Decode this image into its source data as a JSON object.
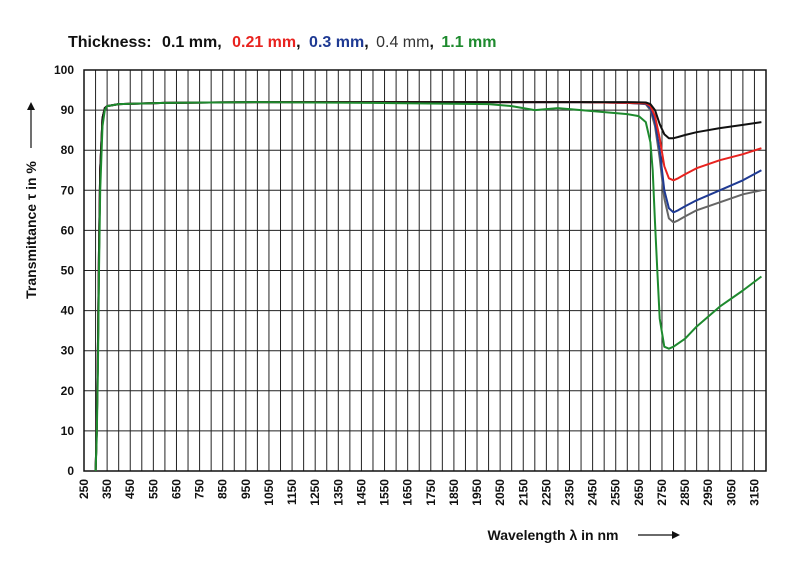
{
  "chart_data": {
    "type": "line",
    "legend": {
      "prefix": "Thickness:",
      "separator": ",",
      "entries": [
        {
          "label": "0.1 mm",
          "color": "#111111",
          "bold": true
        },
        {
          "label": "0.21 mm",
          "color": "#e8231f",
          "bold": true
        },
        {
          "label": "0.3 mm",
          "color": "#1f3a93",
          "bold": true
        },
        {
          "label": "0.4 mm",
          "color": "#555555",
          "bold": false
        },
        {
          "label": "1.1 mm",
          "color": "#1e8a2e",
          "bold": true
        }
      ]
    },
    "xlabel": "Wavelength λ in nm",
    "ylabel": "Transmittance τ in %",
    "xlim": [
      250,
      3200
    ],
    "ylim": [
      0,
      100
    ],
    "x_ticks": [
      250,
      350,
      450,
      550,
      650,
      750,
      850,
      950,
      1050,
      1150,
      1250,
      1350,
      1450,
      1550,
      1650,
      1750,
      1850,
      1950,
      2050,
      2150,
      2250,
      2350,
      2450,
      2550,
      2650,
      2750,
      2850,
      2950,
      3050,
      3150
    ],
    "y_ticks": [
      0,
      10,
      20,
      30,
      40,
      50,
      60,
      70,
      80,
      90,
      100
    ],
    "grid": true,
    "series": [
      {
        "name": "0.4 mm",
        "color": "#666666",
        "x": [
          300,
          305,
          310,
          315,
          320,
          330,
          340,
          350,
          400,
          600,
          1000,
          1500,
          2000,
          2400,
          2600,
          2680,
          2700,
          2720,
          2740,
          2760,
          2780,
          2800,
          2820,
          2850,
          2900,
          3000,
          3100,
          3180
        ],
        "y": [
          0,
          10,
          30,
          55,
          75,
          88,
          90.5,
          91,
          91.5,
          91.8,
          92,
          92,
          92,
          92,
          91.8,
          91.5,
          90,
          86,
          78,
          68,
          63,
          62,
          62.5,
          63.5,
          65,
          67,
          69,
          70
        ]
      },
      {
        "name": "0.3 mm",
        "color": "#1f3a93",
        "x": [
          300,
          305,
          310,
          315,
          320,
          330,
          340,
          350,
          400,
          600,
          1000,
          1500,
          2000,
          2400,
          2600,
          2680,
          2700,
          2720,
          2740,
          2760,
          2780,
          2800,
          2820,
          2850,
          2900,
          3000,
          3100,
          3180
        ],
        "y": [
          0,
          10,
          30,
          55,
          75,
          88,
          90.5,
          91,
          91.5,
          91.8,
          92,
          92,
          92,
          92,
          91.8,
          91.6,
          90.5,
          87,
          80,
          70,
          65.5,
          64.5,
          65,
          66,
          67.5,
          70,
          72.5,
          75
        ]
      },
      {
        "name": "0.21 mm",
        "color": "#e8231f",
        "x": [
          300,
          305,
          310,
          315,
          320,
          330,
          340,
          350,
          400,
          600,
          1000,
          1500,
          2000,
          2400,
          2600,
          2680,
          2700,
          2720,
          2740,
          2760,
          2780,
          2800,
          2820,
          2850,
          2900,
          3000,
          3100,
          3180
        ],
        "y": [
          0,
          10,
          30,
          55,
          75,
          88,
          90.5,
          91,
          91.5,
          91.8,
          92,
          92,
          92,
          92,
          91.8,
          91.7,
          91,
          88.5,
          83,
          76,
          73,
          72.5,
          73,
          74,
          75.5,
          77.5,
          79,
          80.5
        ]
      },
      {
        "name": "0.1 mm",
        "color": "#111111",
        "x": [
          300,
          305,
          310,
          315,
          320,
          330,
          340,
          350,
          400,
          600,
          1000,
          1500,
          2000,
          2400,
          2600,
          2680,
          2700,
          2720,
          2740,
          2760,
          2780,
          2800,
          2820,
          2850,
          2900,
          3000,
          3100,
          3180
        ],
        "y": [
          0,
          10,
          30,
          55,
          75,
          88,
          90.5,
          91,
          91.5,
          91.8,
          92,
          92,
          92,
          92,
          92,
          91.9,
          91.5,
          90,
          86.5,
          84,
          83,
          83,
          83.3,
          83.8,
          84.5,
          85.5,
          86.3,
          87
        ]
      },
      {
        "name": "1.1 mm",
        "color": "#1e8a2e",
        "x": [
          300,
          305,
          310,
          315,
          320,
          330,
          340,
          350,
          400,
          600,
          1000,
          1500,
          2000,
          2100,
          2200,
          2300,
          2400,
          2500,
          2600,
          2650,
          2680,
          2700,
          2710,
          2720,
          2730,
          2740,
          2760,
          2780,
          2800,
          2850,
          2900,
          3000,
          3100,
          3180
        ],
        "y": [
          0,
          8,
          25,
          50,
          70,
          86,
          90,
          91,
          91.5,
          91.8,
          92,
          91.8,
          91.5,
          91,
          90,
          90.5,
          90,
          89.5,
          89,
          88.5,
          87,
          82,
          75,
          62,
          50,
          38,
          31,
          30.5,
          31,
          33,
          36,
          41,
          45,
          48.5
        ]
      }
    ]
  }
}
